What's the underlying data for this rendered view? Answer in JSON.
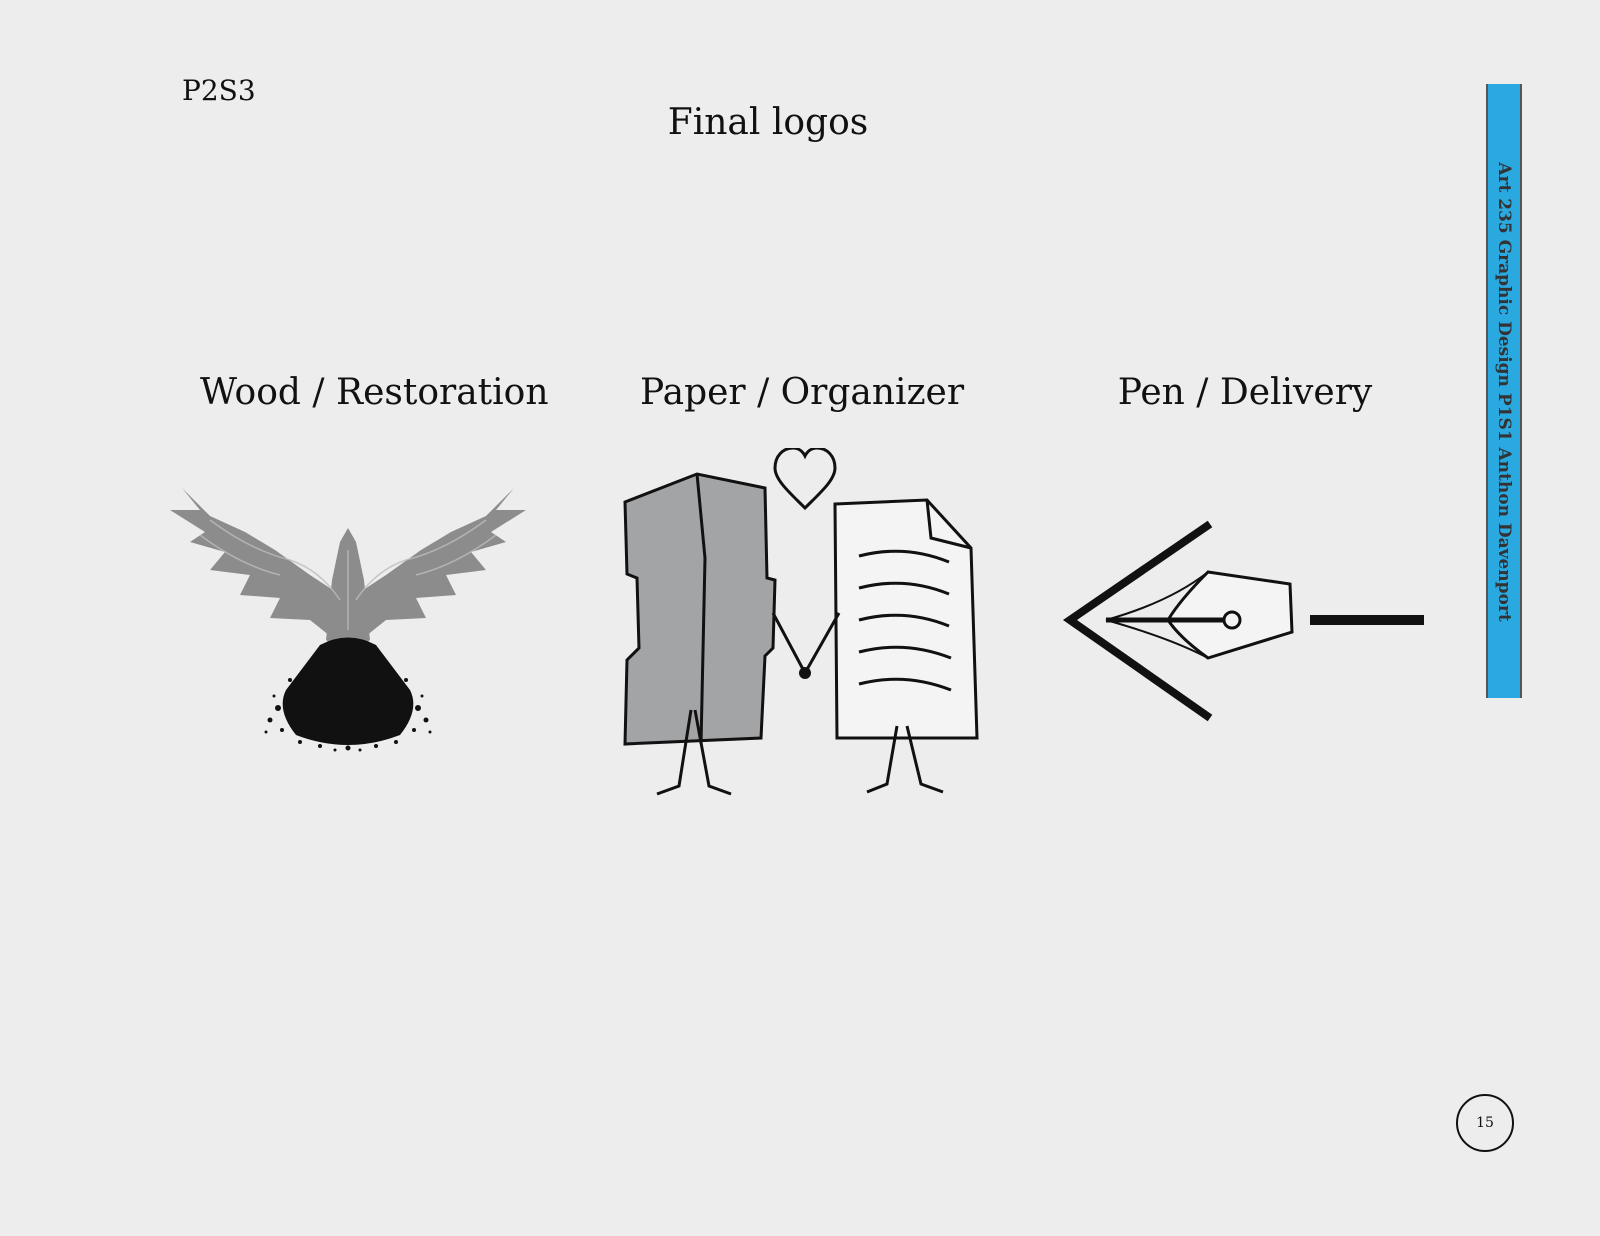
{
  "page": {
    "code": "P2S3",
    "title": "Final logos",
    "side_tab": "Art 235 Graphic Design P1S1 Anthon Davenport",
    "page_number": "15"
  },
  "logos": [
    {
      "label": "Wood / Restoration",
      "icon": "wood-eagle-logo-icon"
    },
    {
      "label": "Paper / Organizer",
      "icon": "paper-couple-logo-icon"
    },
    {
      "label": "Pen / Delivery",
      "icon": "pen-nib-arrow-logo-icon"
    }
  ],
  "colors": {
    "background": "#ededed",
    "accent": "#2aa8e0",
    "ink": "#111111",
    "gray": "#8a8a8a"
  }
}
